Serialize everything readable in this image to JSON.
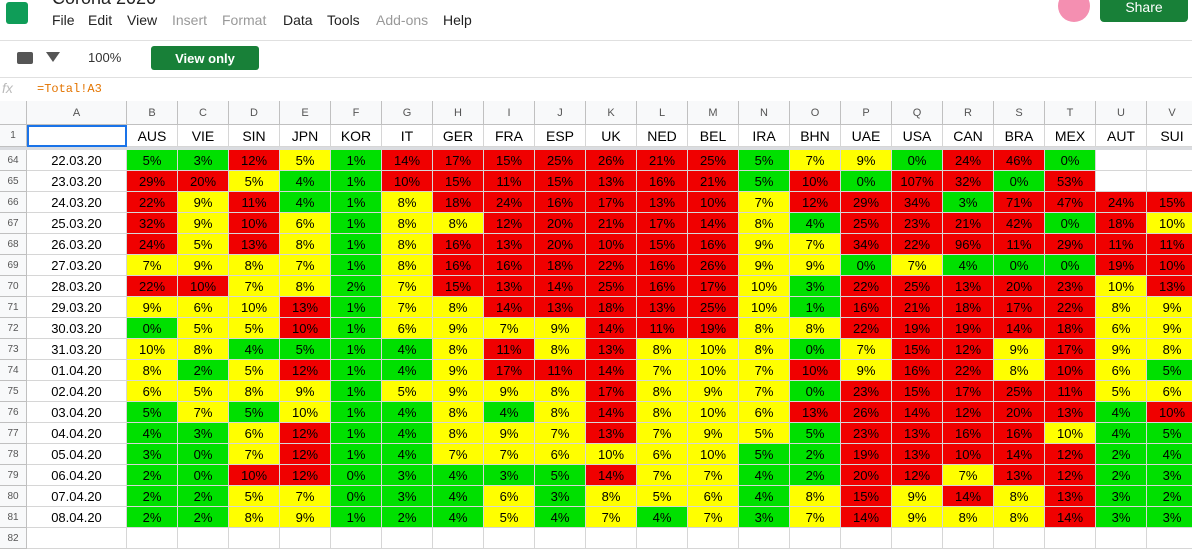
{
  "header": {
    "title": "Corona 2020",
    "menu": [
      "File",
      "Edit",
      "View",
      "Insert",
      "Format",
      "Data",
      "Tools",
      "Add-ons",
      "Help"
    ],
    "disabled_menu": [
      "Insert",
      "Format",
      "Add-ons"
    ],
    "share": "Share"
  },
  "toolbar": {
    "zoom": "100%",
    "mode": "View only"
  },
  "formula_bar": {
    "fx": "fx",
    "formula": "=Total!A3"
  },
  "sheet": {
    "column_letters": [
      "A",
      "B",
      "C",
      "D",
      "E",
      "F",
      "G",
      "H",
      "I",
      "J",
      "K",
      "L",
      "M",
      "N",
      "O",
      "P",
      "Q",
      "R",
      "S",
      "T",
      "U",
      "V"
    ],
    "row_numbers": [
      1,
      64,
      65,
      66,
      67,
      68,
      69,
      70,
      71,
      72,
      73,
      74,
      75,
      76,
      77,
      78,
      79,
      80,
      81,
      82
    ],
    "countries": [
      "AUS",
      "VIE",
      "SIN",
      "JPN",
      "KOR",
      "IT",
      "GER",
      "FRA",
      "ESP",
      "UK",
      "NED",
      "BEL",
      "IRA",
      "BHN",
      "UAE",
      "USA",
      "CAN",
      "BRA",
      "MEX",
      "AUT",
      "SUI"
    ],
    "palette": {
      "G": "#00e000",
      "Y": "#ffff00",
      "R": "#f00000",
      "W": "#ffffff"
    },
    "rows": [
      {
        "date": "22.03.20",
        "cells": [
          "5%",
          "3%",
          "12%",
          "5%",
          "1%",
          "14%",
          "17%",
          "15%",
          "25%",
          "26%",
          "21%",
          "25%",
          "5%",
          "7%",
          "9%",
          "0%",
          "24%",
          "46%",
          "0%",
          null,
          null
        ],
        "fills": "GGRYGRRRRRRRGYYGRRGWW"
      },
      {
        "date": "23.03.20",
        "cells": [
          "29%",
          "20%",
          "5%",
          "4%",
          "1%",
          "10%",
          "15%",
          "11%",
          "15%",
          "13%",
          "16%",
          "21%",
          "5%",
          "10%",
          "0%",
          "107%",
          "32%",
          "0%",
          "53%",
          null,
          null
        ],
        "fills": "RRYGGRRRRRRRGRGRRGRWW"
      },
      {
        "date": "24.03.20",
        "cells": [
          "22%",
          "9%",
          "11%",
          "4%",
          "1%",
          "8%",
          "18%",
          "24%",
          "16%",
          "17%",
          "13%",
          "10%",
          "7%",
          "12%",
          "29%",
          "34%",
          "3%",
          "71%",
          "47%",
          "24%",
          "15%"
        ],
        "fills": "RYRGGYRRRRRRYRRRGRRRR"
      },
      {
        "date": "25.03.20",
        "cells": [
          "32%",
          "9%",
          "10%",
          "6%",
          "1%",
          "8%",
          "8%",
          "12%",
          "20%",
          "21%",
          "17%",
          "14%",
          "8%",
          "4%",
          "25%",
          "23%",
          "21%",
          "42%",
          "0%",
          "18%",
          "10%"
        ],
        "fills": "RYRYGYYRRRRRYGRRRRGRY"
      },
      {
        "date": "26.03.20",
        "cells": [
          "24%",
          "5%",
          "13%",
          "8%",
          "1%",
          "8%",
          "16%",
          "13%",
          "20%",
          "10%",
          "15%",
          "16%",
          "9%",
          "7%",
          "34%",
          "22%",
          "96%",
          "11%",
          "29%",
          "11%",
          "11%"
        ],
        "fills": "RYRYGYRRRRRRYYRRRRRRR"
      },
      {
        "date": "27.03.20",
        "cells": [
          "7%",
          "9%",
          "8%",
          "7%",
          "1%",
          "8%",
          "16%",
          "16%",
          "18%",
          "22%",
          "16%",
          "26%",
          "9%",
          "9%",
          "0%",
          "7%",
          "4%",
          "0%",
          "0%",
          "19%",
          "10%"
        ],
        "fills": "YYYYGYRRRRRRYYGYGGGRR"
      },
      {
        "date": "28.03.20",
        "cells": [
          "22%",
          "10%",
          "7%",
          "8%",
          "2%",
          "7%",
          "15%",
          "13%",
          "14%",
          "25%",
          "16%",
          "17%",
          "10%",
          "3%",
          "22%",
          "25%",
          "13%",
          "20%",
          "23%",
          "10%",
          "13%"
        ],
        "fills": "RRYYGYRRRRRRYGRRRRRYR"
      },
      {
        "date": "29.03.20",
        "cells": [
          "9%",
          "6%",
          "10%",
          "13%",
          "1%",
          "7%",
          "8%",
          "14%",
          "13%",
          "18%",
          "13%",
          "25%",
          "10%",
          "1%",
          "16%",
          "21%",
          "18%",
          "17%",
          "22%",
          "8%",
          "9%"
        ],
        "fills": "YYYRGYYRRRRRYGRRRRRYY"
      },
      {
        "date": "30.03.20",
        "cells": [
          "0%",
          "5%",
          "5%",
          "10%",
          "1%",
          "6%",
          "9%",
          "7%",
          "9%",
          "14%",
          "11%",
          "19%",
          "8%",
          "8%",
          "22%",
          "19%",
          "19%",
          "14%",
          "18%",
          "6%",
          "9%"
        ],
        "fills": "GYYRGYYYYRRRYYRRRRRYY"
      },
      {
        "date": "31.03.20",
        "cells": [
          "10%",
          "8%",
          "4%",
          "5%",
          "1%",
          "4%",
          "8%",
          "11%",
          "8%",
          "13%",
          "8%",
          "10%",
          "8%",
          "0%",
          "7%",
          "15%",
          "12%",
          "9%",
          "17%",
          "9%",
          "8%"
        ],
        "fills": "YYGGGGYRYRYYYGYRRYRYY"
      },
      {
        "date": "01.04.20",
        "cells": [
          "8%",
          "2%",
          "5%",
          "12%",
          "1%",
          "4%",
          "9%",
          "17%",
          "11%",
          "14%",
          "7%",
          "10%",
          "7%",
          "10%",
          "9%",
          "16%",
          "22%",
          "8%",
          "10%",
          "6%",
          "5%"
        ],
        "fills": "YGYRGGYRRRYYYRYRRYRYG"
      },
      {
        "date": "02.04.20",
        "cells": [
          "6%",
          "5%",
          "8%",
          "9%",
          "1%",
          "5%",
          "9%",
          "9%",
          "8%",
          "17%",
          "8%",
          "9%",
          "7%",
          "0%",
          "23%",
          "15%",
          "17%",
          "25%",
          "11%",
          "5%",
          "6%"
        ],
        "fills": "YYYYGYYYYRYYYGRRRRRYY"
      },
      {
        "date": "03.04.20",
        "cells": [
          "5%",
          "7%",
          "5%",
          "10%",
          "1%",
          "4%",
          "8%",
          "4%",
          "8%",
          "14%",
          "8%",
          "10%",
          "6%",
          "13%",
          "26%",
          "14%",
          "12%",
          "20%",
          "13%",
          "4%",
          "10%"
        ],
        "fills": "GYGYGGYGYRYYYRRRRRRGR"
      },
      {
        "date": "04.04.20",
        "cells": [
          "4%",
          "3%",
          "6%",
          "12%",
          "1%",
          "4%",
          "8%",
          "9%",
          "7%",
          "13%",
          "7%",
          "9%",
          "5%",
          "5%",
          "23%",
          "13%",
          "16%",
          "16%",
          "10%",
          "4%",
          "5%"
        ],
        "fills": "GGYRGGYYYRYYYGRRRRYGG"
      },
      {
        "date": "05.04.20",
        "cells": [
          "3%",
          "0%",
          "7%",
          "12%",
          "1%",
          "4%",
          "7%",
          "7%",
          "6%",
          "10%",
          "6%",
          "10%",
          "5%",
          "2%",
          "19%",
          "13%",
          "10%",
          "14%",
          "12%",
          "2%",
          "4%"
        ],
        "fills": "GGYRGGYYYYYYGGRRRRRGG"
      },
      {
        "date": "06.04.20",
        "cells": [
          "2%",
          "0%",
          "10%",
          "12%",
          "0%",
          "3%",
          "4%",
          "3%",
          "5%",
          "14%",
          "7%",
          "7%",
          "4%",
          "2%",
          "20%",
          "12%",
          "7%",
          "13%",
          "12%",
          "2%",
          "3%"
        ],
        "fills": "GGRRGGGGGRYYGGRRYRRGG"
      },
      {
        "date": "07.04.20",
        "cells": [
          "2%",
          "2%",
          "5%",
          "7%",
          "0%",
          "3%",
          "4%",
          "6%",
          "3%",
          "8%",
          "5%",
          "6%",
          "4%",
          "8%",
          "15%",
          "9%",
          "14%",
          "8%",
          "13%",
          "3%",
          "2%"
        ],
        "fills": "GGYYGGGYGYYYGYRYRYRGG"
      },
      {
        "date": "08.04.20",
        "cells": [
          "2%",
          "2%",
          "8%",
          "9%",
          "1%",
          "2%",
          "4%",
          "5%",
          "4%",
          "7%",
          "4%",
          "7%",
          "3%",
          "7%",
          "14%",
          "9%",
          "8%",
          "8%",
          "14%",
          "3%",
          "3%"
        ],
        "fills": "GGYYGGGYGYGYGYRYYYRGG"
      }
    ]
  }
}
